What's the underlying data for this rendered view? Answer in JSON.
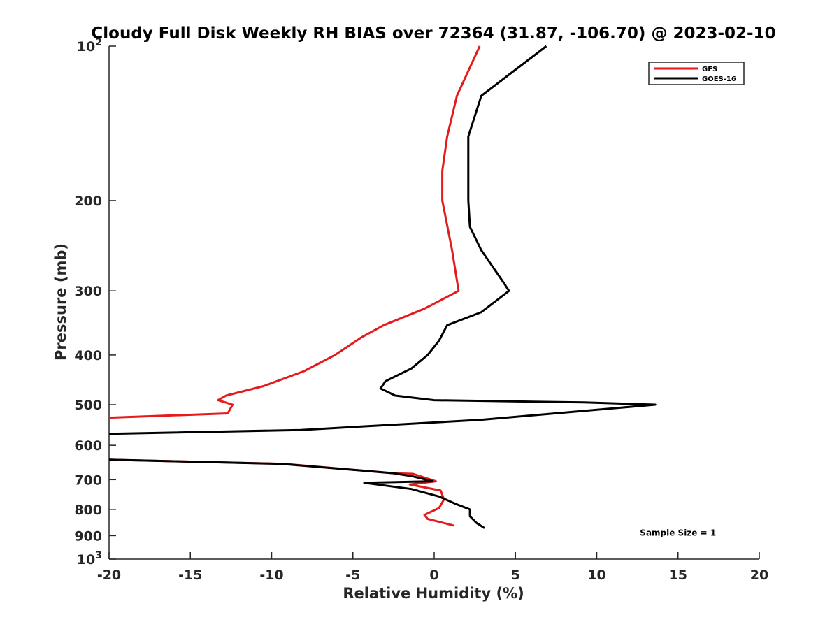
{
  "chart_data": {
    "type": "line",
    "title": "Cloudy Full Disk Weekly RH BIAS over 72364 (31.87, -106.70) @ 2023-02-10",
    "xlabel": "Relative Humidity (%)",
    "ylabel": "Pressure (mb)",
    "xlim": [
      -20,
      20
    ],
    "ylim": [
      100,
      1000
    ],
    "y_scale": "log",
    "y_reversed": true,
    "grid": false,
    "legend_position": "top-right",
    "x_ticks": [
      -20,
      -15,
      -10,
      -5,
      0,
      5,
      10,
      15,
      20
    ],
    "x_tick_labels": [
      "-20",
      "-15",
      "-10",
      "-5",
      "0",
      "5",
      "10",
      "15",
      "20"
    ],
    "y_ticks": [
      {
        "value": 100,
        "base": "10",
        "exp": "2"
      },
      {
        "value": 200,
        "label": "200"
      },
      {
        "value": 300,
        "label": "300"
      },
      {
        "value": 400,
        "label": "400"
      },
      {
        "value": 500,
        "label": "500"
      },
      {
        "value": 600,
        "label": "600"
      },
      {
        "value": 700,
        "label": "700"
      },
      {
        "value": 800,
        "label": "800"
      },
      {
        "value": 900,
        "label": "900"
      },
      {
        "value": 1000,
        "base": "10",
        "exp": "3"
      }
    ],
    "series": [
      {
        "name": "GFS",
        "color": "#e41a1c",
        "segments": [
          [
            [
              2.8,
              100
            ],
            [
              1.4,
              125
            ],
            [
              0.8,
              150
            ],
            [
              0.5,
              175
            ],
            [
              0.5,
              200
            ],
            [
              1.1,
              250
            ],
            [
              1.5,
              300
            ],
            [
              -0.6,
              325
            ],
            [
              -3.1,
              350
            ],
            [
              -4.5,
              370
            ],
            [
              -6.1,
              400
            ],
            [
              -8.0,
              430
            ],
            [
              -10.5,
              460
            ],
            [
              -12.8,
              480
            ],
            [
              -13.3,
              490
            ],
            [
              -12.4,
              500
            ],
            [
              -12.7,
              520
            ],
            [
              -20,
              530
            ]
          ],
          [
            [
              -20,
              640
            ],
            [
              -9.2,
              652
            ],
            [
              -2.5,
              680
            ],
            [
              -1.3,
              682
            ],
            [
              0.1,
              705
            ],
            [
              -1.5,
              715
            ],
            [
              0.4,
              735
            ],
            [
              0.6,
              765
            ],
            [
              0.3,
              795
            ],
            [
              -0.6,
              820
            ],
            [
              -0.4,
              835
            ],
            [
              1.2,
              860
            ]
          ]
        ]
      },
      {
        "name": "GOES-16",
        "color": "#000000",
        "segments": [
          [
            [
              6.9,
              100
            ],
            [
              2.9,
              125
            ],
            [
              2.1,
              150
            ],
            [
              2.1,
              175
            ],
            [
              2.1,
              200
            ],
            [
              2.2,
              225
            ],
            [
              2.9,
              250
            ],
            [
              3.8,
              275
            ],
            [
              4.3,
              290
            ],
            [
              4.6,
              300
            ],
            [
              2.9,
              330
            ],
            [
              0.8,
              350
            ],
            [
              0.3,
              375
            ],
            [
              -0.4,
              400
            ],
            [
              -1.4,
              425
            ],
            [
              -3.0,
              450
            ],
            [
              -3.3,
              465
            ],
            [
              -2.4,
              480
            ],
            [
              0.0,
              490
            ],
            [
              9.2,
              495
            ],
            [
              13.6,
              500
            ],
            [
              2.9,
              535
            ],
            [
              -8.2,
              560
            ],
            [
              -20,
              570
            ]
          ],
          [
            [
              -20,
              640
            ],
            [
              -9.4,
              652
            ],
            [
              -2.5,
              680
            ],
            [
              -1.3,
              690
            ],
            [
              -0.1,
              705
            ],
            [
              -4.3,
              710
            ],
            [
              -1.4,
              730
            ],
            [
              0.3,
              755
            ],
            [
              1.3,
              780
            ],
            [
              2.2,
              800
            ],
            [
              2.2,
              825
            ],
            [
              2.6,
              850
            ],
            [
              3.1,
              870
            ]
          ]
        ]
      }
    ],
    "annotations": [
      {
        "text": "Sample Size = 1",
        "x": 15,
        "y": 900
      }
    ]
  }
}
